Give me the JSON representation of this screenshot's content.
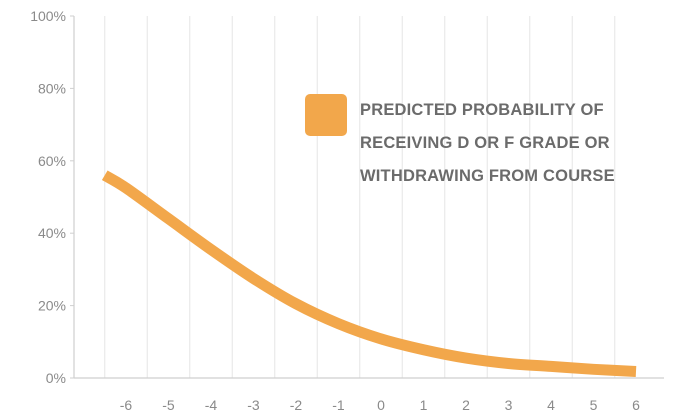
{
  "chart_data": {
    "type": "line",
    "title": "",
    "xlabel": "",
    "ylabel": "",
    "x_ticks": [
      "-6",
      "-5",
      "-4",
      "-3",
      "-2",
      "-1",
      "0",
      "1",
      "2",
      "3",
      "4",
      "5",
      "6"
    ],
    "y_ticks": [
      "0%",
      "20%",
      "40%",
      "60%",
      "80%",
      "100%"
    ],
    "xlim": [
      -6.6,
      6
    ],
    "ylim": [
      0,
      100
    ],
    "grid": "vertical",
    "legend": {
      "placement": "top-right",
      "lines": [
        "PREDICTED PROBABILITY OF",
        "RECEIVING D OR F GRADE OR",
        "WITHDRAWING FROM COURSE"
      ]
    },
    "colors": {
      "series": "#f2a74b",
      "grid": "#e6e6e6",
      "axis": "#cfcfcf",
      "tick_text": "#8a8a8a",
      "legend_text": "#6b6b6b"
    },
    "series": [
      {
        "x": [
          -6.5,
          -6,
          -5,
          -4,
          -3,
          -2,
          -1,
          0,
          1,
          2,
          3,
          4,
          5,
          6
        ],
        "y": [
          56,
          52.5,
          44,
          35.5,
          27.5,
          20.5,
          15,
          10.8,
          7.8,
          5.5,
          4,
          3.2,
          2.4,
          1.8
        ]
      }
    ]
  }
}
